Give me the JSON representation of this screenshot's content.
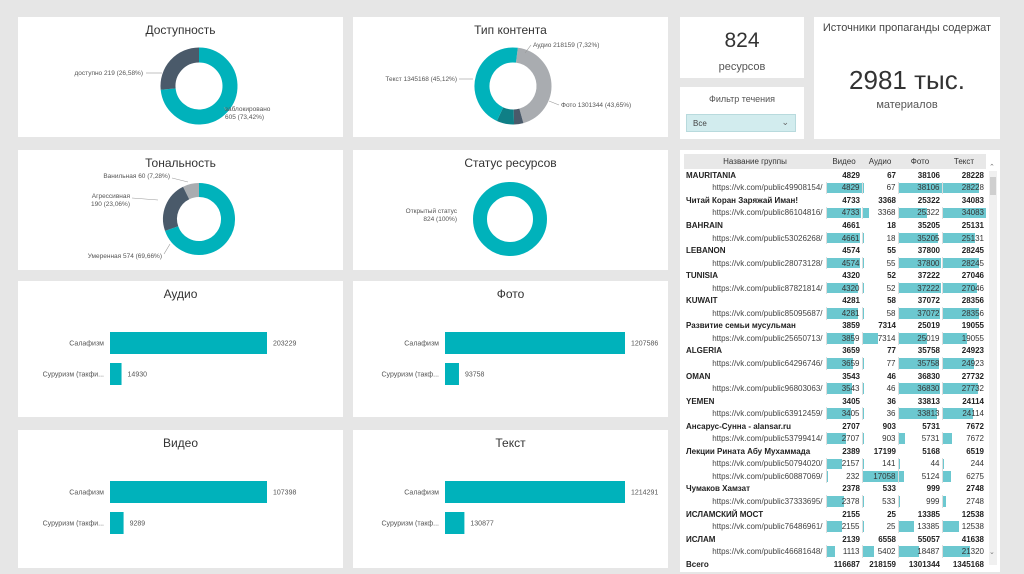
{
  "colors": {
    "teal": "#00b2bb",
    "dark": "#4a5a6a",
    "gray": "#a9acb0",
    "darkteal": "#0f7f86",
    "barlight": "#6cc8d0"
  },
  "availability": {
    "title": "Доступность",
    "label_available": "доступно 219 (26,58%)",
    "label_blocked_1": "заблокировано",
    "label_blocked_2": "605 (73,42%)",
    "chart_data": {
      "type": "pie",
      "categories": [
        "доступно",
        "заблокировано"
      ],
      "values": [
        219,
        605
      ]
    }
  },
  "content_type": {
    "title": "Тип контента",
    "label_audio": "Аудио 218159 (7,32%)",
    "label_text": "Текст 1345168 (45,12%)",
    "label_photo": "Фото 1301344 (43,65%)",
    "chart_data": {
      "type": "pie",
      "categories": [
        "Текст",
        "Фото",
        "Аудио",
        "Видео"
      ],
      "values": [
        1345168,
        1301344,
        218159,
        116687
      ]
    }
  },
  "tonality": {
    "title": "Тональность",
    "label_vanilla": "Ванильная 60 (7,28%)",
    "label_aggr_1": "Агрессивная",
    "label_aggr_2": "190 (23,06%)",
    "label_moderate": "Умеренная 574 (69,66%)",
    "chart_data": {
      "type": "pie",
      "categories": [
        "Умеренная",
        "Агрессивная",
        "Ванильная"
      ],
      "values": [
        574,
        190,
        60
      ]
    }
  },
  "resource_status": {
    "title": "Статус ресурсов",
    "label_open_1": "Открытый статус",
    "label_open_2": "824 (100%)",
    "chart_data": {
      "type": "pie",
      "categories": [
        "Открытый статус"
      ],
      "values": [
        824
      ]
    }
  },
  "kpi_resources": {
    "value": "824",
    "label": "ресурсов"
  },
  "kpi_sources": {
    "title": "Источники пропаганды содержат",
    "value": "2981 тыс.",
    "label": "материалов"
  },
  "slicer": {
    "title": "Фильтр течения",
    "selected": "Все"
  },
  "bar_charts": [
    {
      "title": "Аудио",
      "chart_data": {
        "type": "bar",
        "categories": [
          "Салафизм",
          "Суруризм (такфи..."
        ],
        "values": [
          203229,
          14930
        ]
      }
    },
    {
      "title": "Фото",
      "chart_data": {
        "type": "bar",
        "categories": [
          "Салафизм",
          "Суруризм (такф..."
        ],
        "values": [
          1207586,
          93758
        ]
      }
    },
    {
      "title": "Видео",
      "chart_data": {
        "type": "bar",
        "categories": [
          "Салафизм",
          "Суруризм (такфи..."
        ],
        "values": [
          107398,
          9289
        ]
      }
    },
    {
      "title": "Текст",
      "chart_data": {
        "type": "bar",
        "categories": [
          "Салафизм",
          "Суруризм (такф..."
        ],
        "values": [
          1214291,
          130877
        ]
      }
    }
  ],
  "table": {
    "headers": [
      "Название группы",
      "Видео",
      "Аудио",
      "Фото",
      "Текст"
    ],
    "rows": [
      {
        "kind": "grp",
        "name": "MAURITANIA",
        "v": "4829",
        "a": "67",
        "f": "38106",
        "t": "28228"
      },
      {
        "kind": "url",
        "name": "https://vk.com/public49908154/",
        "v": "4829",
        "a": "67",
        "f": "38106",
        "t": "28228"
      },
      {
        "kind": "grp",
        "name": "Читай Коран Заряжай Иман!",
        "v": "4733",
        "a": "3368",
        "f": "25322",
        "t": "34083"
      },
      {
        "kind": "url",
        "name": "https://vk.com/public86104816/",
        "v": "4733",
        "a": "3368",
        "f": "25322",
        "t": "34083"
      },
      {
        "kind": "grp",
        "name": "BAHRAIN",
        "v": "4661",
        "a": "18",
        "f": "35205",
        "t": "25131"
      },
      {
        "kind": "url",
        "name": "https://vk.com/public53026268/",
        "v": "4661",
        "a": "18",
        "f": "35205",
        "t": "25131"
      },
      {
        "kind": "grp",
        "name": "LEBANON",
        "v": "4574",
        "a": "55",
        "f": "37800",
        "t": "28245"
      },
      {
        "kind": "url",
        "name": "https://vk.com/public28073128/",
        "v": "4574",
        "a": "55",
        "f": "37800",
        "t": "28245"
      },
      {
        "kind": "grp",
        "name": "TUNISIA",
        "v": "4320",
        "a": "52",
        "f": "37222",
        "t": "27046"
      },
      {
        "kind": "url",
        "name": "https://vk.com/public87821814/",
        "v": "4320",
        "a": "52",
        "f": "37222",
        "t": "27046"
      },
      {
        "kind": "grp",
        "name": "KUWAIT",
        "v": "4281",
        "a": "58",
        "f": "37072",
        "t": "28356"
      },
      {
        "kind": "url",
        "name": "https://vk.com/public85095687/",
        "v": "4281",
        "a": "58",
        "f": "37072",
        "t": "28356"
      },
      {
        "kind": "grp",
        "name": "Развитие семьи мусульман",
        "v": "3859",
        "a": "7314",
        "f": "25019",
        "t": "19055"
      },
      {
        "kind": "url",
        "name": "https://vk.com/public25650713/",
        "v": "3859",
        "a": "7314",
        "f": "25019",
        "t": "19055"
      },
      {
        "kind": "grp",
        "name": "ALGERIA",
        "v": "3659",
        "a": "77",
        "f": "35758",
        "t": "24923"
      },
      {
        "kind": "url",
        "name": "https://vk.com/public64296746/",
        "v": "3659",
        "a": "77",
        "f": "35758",
        "t": "24923"
      },
      {
        "kind": "grp",
        "name": "OMAN",
        "v": "3543",
        "a": "46",
        "f": "36830",
        "t": "27732"
      },
      {
        "kind": "url",
        "name": "https://vk.com/public96803063/",
        "v": "3543",
        "a": "46",
        "f": "36830",
        "t": "27732"
      },
      {
        "kind": "grp",
        "name": "YEMEN",
        "v": "3405",
        "a": "36",
        "f": "33813",
        "t": "24114"
      },
      {
        "kind": "url",
        "name": "https://vk.com/public63912459/",
        "v": "3405",
        "a": "36",
        "f": "33813",
        "t": "24114"
      },
      {
        "kind": "grp",
        "name": "Ансарус-Сунна - alansar.ru",
        "v": "2707",
        "a": "903",
        "f": "5731",
        "t": "7672"
      },
      {
        "kind": "url",
        "name": "https://vk.com/public53799414/",
        "v": "2707",
        "a": "903",
        "f": "5731",
        "t": "7672"
      },
      {
        "kind": "grp",
        "name": "Лекции Рината Абу Мухаммада",
        "v": "2389",
        "a": "17199",
        "f": "5168",
        "t": "6519"
      },
      {
        "kind": "url",
        "name": "https://vk.com/public50794020/",
        "v": "2157",
        "a": "141",
        "f": "44",
        "t": "244"
      },
      {
        "kind": "url",
        "name": "https://vk.com/public60887069/",
        "v": "232",
        "a": "17058",
        "f": "5124",
        "t": "6275"
      },
      {
        "kind": "grp",
        "name": "Чумаков Хамзат",
        "v": "2378",
        "a": "533",
        "f": "999",
        "t": "2748"
      },
      {
        "kind": "url",
        "name": "https://vk.com/public37333695/",
        "v": "2378",
        "a": "533",
        "f": "999",
        "t": "2748"
      },
      {
        "kind": "grp",
        "name": "ИСЛАМСКИЙ МОСТ",
        "v": "2155",
        "a": "25",
        "f": "13385",
        "t": "12538"
      },
      {
        "kind": "url",
        "name": "https://vk.com/public76486961/",
        "v": "2155",
        "a": "25",
        "f": "13385",
        "t": "12538"
      },
      {
        "kind": "grp",
        "name": "ИСЛАМ",
        "v": "2139",
        "a": "6558",
        "f": "55057",
        "t": "41638"
      },
      {
        "kind": "url",
        "name": "https://vk.com/public46681648/",
        "v": "1113",
        "a": "5402",
        "f": "18487",
        "t": "21320"
      },
      {
        "kind": "tot",
        "name": "Всего",
        "v": "116687",
        "a": "218159",
        "f": "1301344",
        "t": "1345168"
      }
    ]
  }
}
